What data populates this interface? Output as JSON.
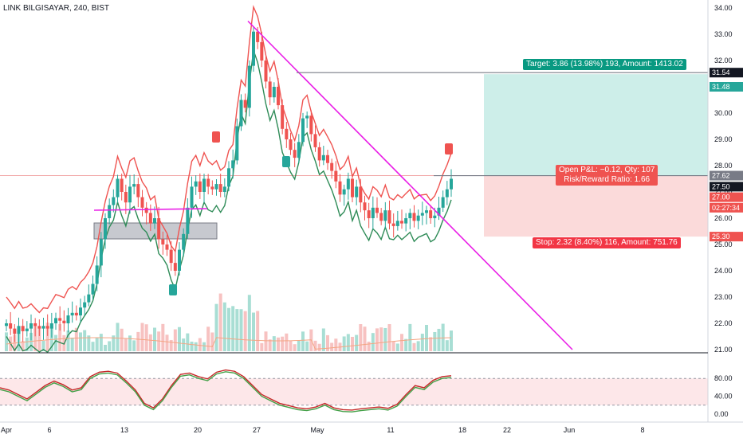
{
  "header": {
    "symbol_line": "LINK BILGISAYAR, 240, BIST"
  },
  "colors": {
    "up": "#26a69a",
    "down": "#ef5350",
    "trendline": "#e91ee6",
    "target_zone": "#cdeee9",
    "stop_zone": "#fbdada",
    "target_label": "#089981",
    "stop_label": "#f23645",
    "entry_label": "#ef5350",
    "axis_text": "#131722",
    "osc_band": "#fde7e9"
  },
  "price_axis": {
    "ticks": [
      "34.00",
      "33.00",
      "32.00",
      "31.00",
      "30.00",
      "29.00",
      "28.00",
      "27.00",
      "26.00",
      "25.00",
      "24.00",
      "23.00",
      "22.00",
      "21.00"
    ],
    "tags": [
      {
        "text": "31.54",
        "color": "#131722"
      },
      {
        "text": "31.48",
        "color": "#26a69a"
      },
      {
        "text": "27.62",
        "color": "#787b86"
      },
      {
        "text": "27.50",
        "color": "#131722"
      },
      {
        "text": "27.00",
        "color": "#ef5350"
      },
      {
        "text": "02:27:34",
        "color": "#ef5350"
      },
      {
        "text": "25.30",
        "color": "#ef5350"
      }
    ]
  },
  "osc_axis": {
    "ticks": [
      "80.00",
      "40.00",
      "0.00"
    ]
  },
  "time_axis": {
    "ticks": [
      "Apr",
      "6",
      "13",
      "20",
      "27",
      "May",
      "11",
      "18",
      "22",
      "Jun",
      "8"
    ]
  },
  "position": {
    "target_label": "Target: 3.86 (13.98%) 193, Amount: 1413.02",
    "stop_label": "Stop: 2.32 (8.40%) 116, Amount: 751.76",
    "open_pnl": "Open P&L: −0.12, Qty: 107",
    "risk_reward": "Risk/Reward Ratio: 1.66",
    "entry": 27.62,
    "target": 31.48,
    "stop": 25.3
  },
  "chart_data": {
    "type": "candlestick",
    "price_range": [
      21.0,
      34.0
    ],
    "oscillator_range": [
      0,
      100
    ],
    "trendline": {
      "from": 33.5,
      "to": 21.0
    },
    "resistance_level": 31.54,
    "candles_summary": "4-hour candles from early April to mid May",
    "oscillator_overbought": 80,
    "oscillator_oversold": 20
  }
}
